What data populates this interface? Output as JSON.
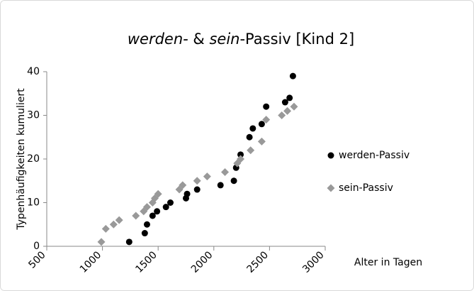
{
  "chart_data": {
    "type": "scatter",
    "title": [
      {
        "text": "werden-",
        "italic": true
      },
      {
        "text": " & ",
        "italic": false
      },
      {
        "text": "sein",
        "italic": true
      },
      {
        "text": "-Passiv [Kind 2]",
        "italic": false
      }
    ],
    "x_label": "Alter in Tagen",
    "y_label": "Typenhäufigkeiten kumuliert",
    "xlim": [
      500,
      3000
    ],
    "xticks": [
      500,
      1000,
      1500,
      2000,
      2500,
      3000
    ],
    "ylim": [
      0,
      40
    ],
    "yticks": [
      0,
      10,
      20,
      30,
      40
    ],
    "legend": "right",
    "series": [
      {
        "name": "werden-Passiv",
        "color": "#000000",
        "marker": "circle",
        "x": [
          1240,
          1380,
          1400,
          1450,
          1490,
          1570,
          1610,
          1750,
          1760,
          1850,
          2060,
          2180,
          2200,
          2240,
          2320,
          2350,
          2430,
          2470,
          2640,
          2680,
          2710
        ],
        "values": [
          1,
          3,
          5,
          7,
          8,
          9,
          10,
          11,
          12,
          13,
          14,
          15,
          18,
          21,
          25,
          27,
          28,
          32,
          33,
          34,
          39
        ]
      },
      {
        "name": "sein-Passiv",
        "color": "#999999",
        "marker": "diamond",
        "x": [
          990,
          1030,
          1100,
          1150,
          1300,
          1370,
          1400,
          1450,
          1470,
          1500,
          1690,
          1720,
          1850,
          1940,
          2100,
          2210,
          2240,
          2330,
          2430,
          2470,
          2610,
          2660,
          2720
        ],
        "values": [
          1,
          4,
          5,
          6,
          7,
          8,
          9,
          10,
          11,
          12,
          13,
          14,
          15,
          16,
          17,
          19,
          20,
          22,
          24,
          29,
          30,
          31,
          32
        ]
      }
    ]
  }
}
